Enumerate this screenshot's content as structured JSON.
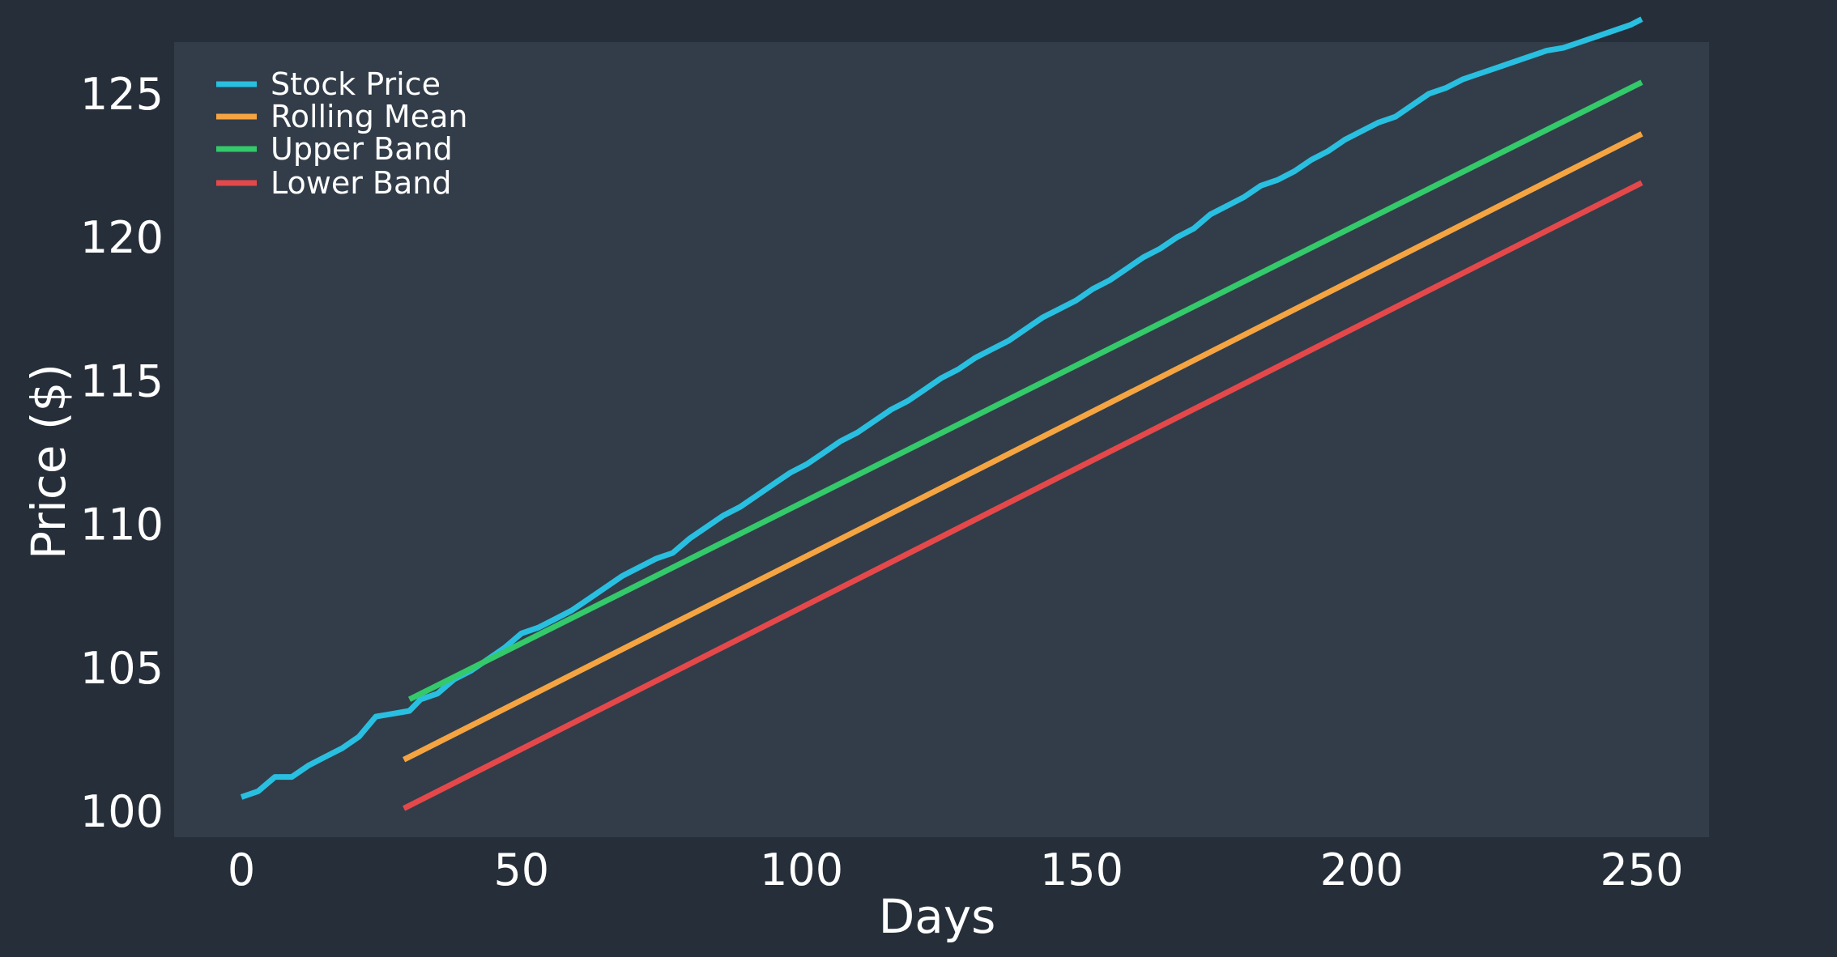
{
  "chart_data": {
    "type": "line",
    "xlabel": "Days",
    "ylabel": "Price ($)",
    "xlim": [
      -12,
      262
    ],
    "ylim": [
      99.1,
      126.8
    ],
    "xticks": [
      0,
      50,
      100,
      150,
      200,
      250
    ],
    "yticks": [
      100,
      105,
      110,
      115,
      120,
      125
    ],
    "grid": false,
    "legend_position": "top-left",
    "background": "#262f39",
    "plot_background": "#323d49",
    "series": [
      {
        "name": "Stock Price",
        "color": "#29bfe0",
        "x": [
          0,
          3,
          6,
          9,
          12,
          15,
          18,
          21,
          24,
          27,
          30,
          32,
          35,
          38,
          41,
          44,
          47,
          50,
          53,
          56,
          59,
          62,
          65,
          68,
          71,
          74,
          77,
          80,
          83,
          86,
          89,
          92,
          95,
          98,
          101,
          104,
          107,
          110,
          113,
          116,
          119,
          122,
          125,
          128,
          131,
          134,
          137,
          140,
          143,
          146,
          149,
          152,
          155,
          158,
          161,
          164,
          167,
          170,
          173,
          176,
          179,
          182,
          185,
          188,
          191,
          194,
          197,
          200,
          203,
          206,
          209,
          212,
          215,
          218,
          221,
          224,
          227,
          230,
          233,
          236,
          239,
          242,
          245,
          248,
          250
        ],
        "y": [
          100.5,
          100.7,
          101.2,
          101.2,
          101.6,
          101.9,
          102.2,
          102.6,
          103.3,
          103.4,
          103.5,
          103.9,
          104.1,
          104.6,
          104.9,
          105.3,
          105.7,
          106.2,
          106.4,
          106.7,
          107.0,
          107.4,
          107.8,
          108.2,
          108.5,
          108.8,
          109.0,
          109.5,
          109.9,
          110.3,
          110.6,
          111.0,
          111.4,
          111.8,
          112.1,
          112.5,
          112.9,
          113.2,
          113.6,
          114.0,
          114.3,
          114.7,
          115.1,
          115.4,
          115.8,
          116.1,
          116.4,
          116.8,
          117.2,
          117.5,
          117.8,
          118.2,
          118.5,
          118.9,
          119.3,
          119.6,
          120.0,
          120.3,
          120.8,
          121.1,
          121.4,
          121.8,
          122.0,
          122.3,
          122.7,
          123.0,
          123.4,
          123.7,
          124.0,
          124.2,
          124.6,
          125.0,
          125.2,
          125.5,
          125.7,
          125.9,
          126.1,
          126.3,
          126.5,
          126.6,
          126.8,
          127.0,
          127.2,
          127.4,
          127.6
        ]
      },
      {
        "name": "Rolling Mean",
        "color": "#f5a442",
        "x": [
          29,
          250
        ],
        "y": [
          101.8,
          123.6
        ]
      },
      {
        "name": "Upper Band",
        "color": "#34c96a",
        "x": [
          30,
          250
        ],
        "y": [
          103.9,
          125.4
        ]
      },
      {
        "name": "Lower Band",
        "color": "#e5484a",
        "x": [
          29,
          250
        ],
        "y": [
          100.1,
          121.9
        ]
      }
    ]
  }
}
